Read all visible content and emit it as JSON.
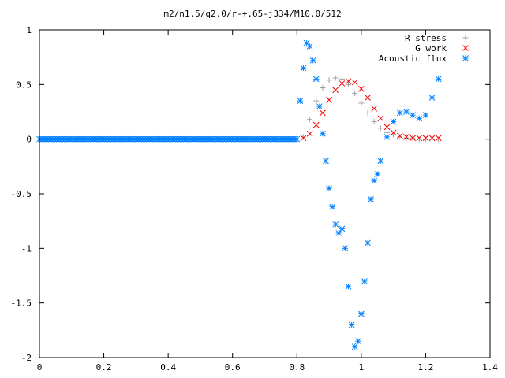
{
  "chart_data": {
    "type": "scatter",
    "title": "m2/n1.5/q2.0/r-+.65-j334/M10.0/512",
    "xlabel": "",
    "ylabel": "",
    "xlim": [
      0,
      1.4
    ],
    "ylim": [
      -2,
      1
    ],
    "x_ticks": [
      "0",
      "0.2",
      "0.4",
      "0.6",
      "0.8",
      "1",
      "1.2",
      "1.4"
    ],
    "y_ticks": [
      "1",
      "0.5",
      "0",
      "-0.5",
      "-1",
      "-1.5",
      "-2"
    ],
    "x_tick_values": [
      0,
      0.2,
      0.4,
      0.6,
      0.8,
      1.0,
      1.2,
      1.4
    ],
    "y_tick_values": [
      1,
      0.5,
      0,
      -0.5,
      -1,
      -1.5,
      -2
    ],
    "grid": false,
    "legend_position": "top-right",
    "series": [
      {
        "name": "R stress",
        "marker": "plus",
        "color": "#a0a0a0",
        "x": [
          0.82,
          0.84,
          0.86,
          0.88,
          0.9,
          0.92,
          0.94,
          0.96,
          0.98,
          1.0,
          1.02,
          1.04,
          1.06,
          1.08,
          1.1,
          1.12,
          1.14,
          1.16,
          1.18,
          1.2,
          1.22,
          1.24
        ],
        "y": [
          0.02,
          0.18,
          0.35,
          0.47,
          0.54,
          0.56,
          0.55,
          0.5,
          0.42,
          0.33,
          0.24,
          0.16,
          0.1,
          0.06,
          0.04,
          0.02,
          0.01,
          0.01,
          0.0,
          0.0,
          0.0,
          0.0
        ]
      },
      {
        "name": "G work",
        "marker": "cross",
        "color": "#ff0000",
        "x": [
          0.82,
          0.84,
          0.86,
          0.88,
          0.9,
          0.92,
          0.94,
          0.96,
          0.98,
          1.0,
          1.02,
          1.04,
          1.06,
          1.08,
          1.1,
          1.12,
          1.14,
          1.16,
          1.18,
          1.2,
          1.22,
          1.24
        ],
        "y": [
          0.01,
          0.05,
          0.13,
          0.24,
          0.36,
          0.45,
          0.51,
          0.53,
          0.52,
          0.46,
          0.38,
          0.28,
          0.19,
          0.11,
          0.06,
          0.03,
          0.02,
          0.01,
          0.01,
          0.01,
          0.01,
          0.01
        ]
      },
      {
        "name": "Acoustic flux",
        "marker": "star",
        "color": "#0080ff",
        "x": [
          0.8,
          0.81,
          0.82,
          0.83,
          0.84,
          0.85,
          0.86,
          0.87,
          0.88,
          0.89,
          0.9,
          0.91,
          0.92,
          0.93,
          0.94,
          0.95,
          0.96,
          0.97,
          0.98,
          0.99,
          1.0,
          1.01,
          1.02,
          1.03,
          1.04,
          1.05,
          1.06,
          1.08,
          1.1,
          1.12,
          1.14,
          1.16,
          1.18,
          1.2,
          1.22,
          1.24
        ],
        "y": [
          0.0,
          0.35,
          0.65,
          0.88,
          0.85,
          0.72,
          0.55,
          0.3,
          0.05,
          -0.2,
          -0.45,
          -0.62,
          -0.78,
          -0.86,
          -0.82,
          -1.0,
          -1.35,
          -1.7,
          -1.9,
          -1.85,
          -1.6,
          -1.3,
          -0.95,
          -0.55,
          -0.38,
          -0.32,
          -0.2,
          0.02,
          0.16,
          0.24,
          0.25,
          0.22,
          0.19,
          0.22,
          0.38,
          0.55
        ]
      }
    ]
  }
}
